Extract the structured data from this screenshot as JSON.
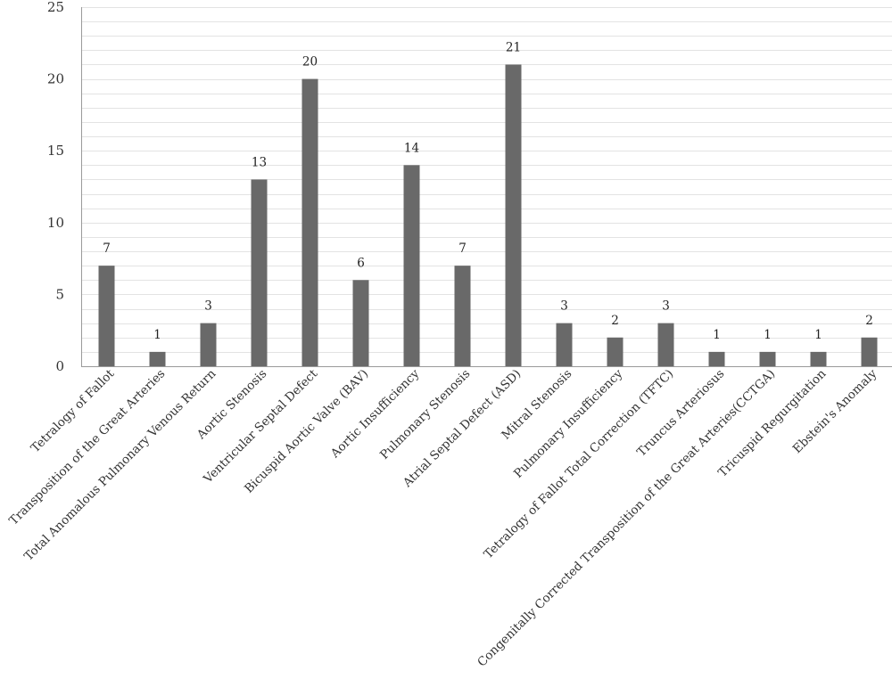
{
  "chart_data": {
    "type": "bar",
    "title": "",
    "xlabel": "",
    "ylabel": "",
    "ylim": [
      0,
      25
    ],
    "y_major_ticks": [
      0,
      5,
      10,
      15,
      20,
      25
    ],
    "y_minor_step": 1,
    "grid": true,
    "legend": "none",
    "bar_color": "#696969",
    "categories": [
      "Tetralogy of Fallot",
      "Transposition of the Great Arteries",
      "Total Anomalous Pulmonary Venous Return",
      "Aortic Stenosis",
      "Ventricular Septal Defect",
      "Bicuspid Aortic Valve (BAV)",
      "Aortic Insufficiency",
      "Pulmonary Stenosis",
      "Atrial Septal Defect (ASD)",
      "Mitral Stenosis",
      "Pulmonary Insufficiency",
      "Tetralogy of Fallot Total Correction (TFTC)",
      "Truncus Arteriosus",
      "Congenitally Corrected Transposition of the Great Arteries(CCTGA)",
      "Tricuspid Regurgitation",
      "Ebstein's Anomaly"
    ],
    "values": [
      7,
      1,
      3,
      13,
      20,
      6,
      14,
      7,
      21,
      3,
      2,
      3,
      1,
      1,
      1,
      2
    ]
  }
}
